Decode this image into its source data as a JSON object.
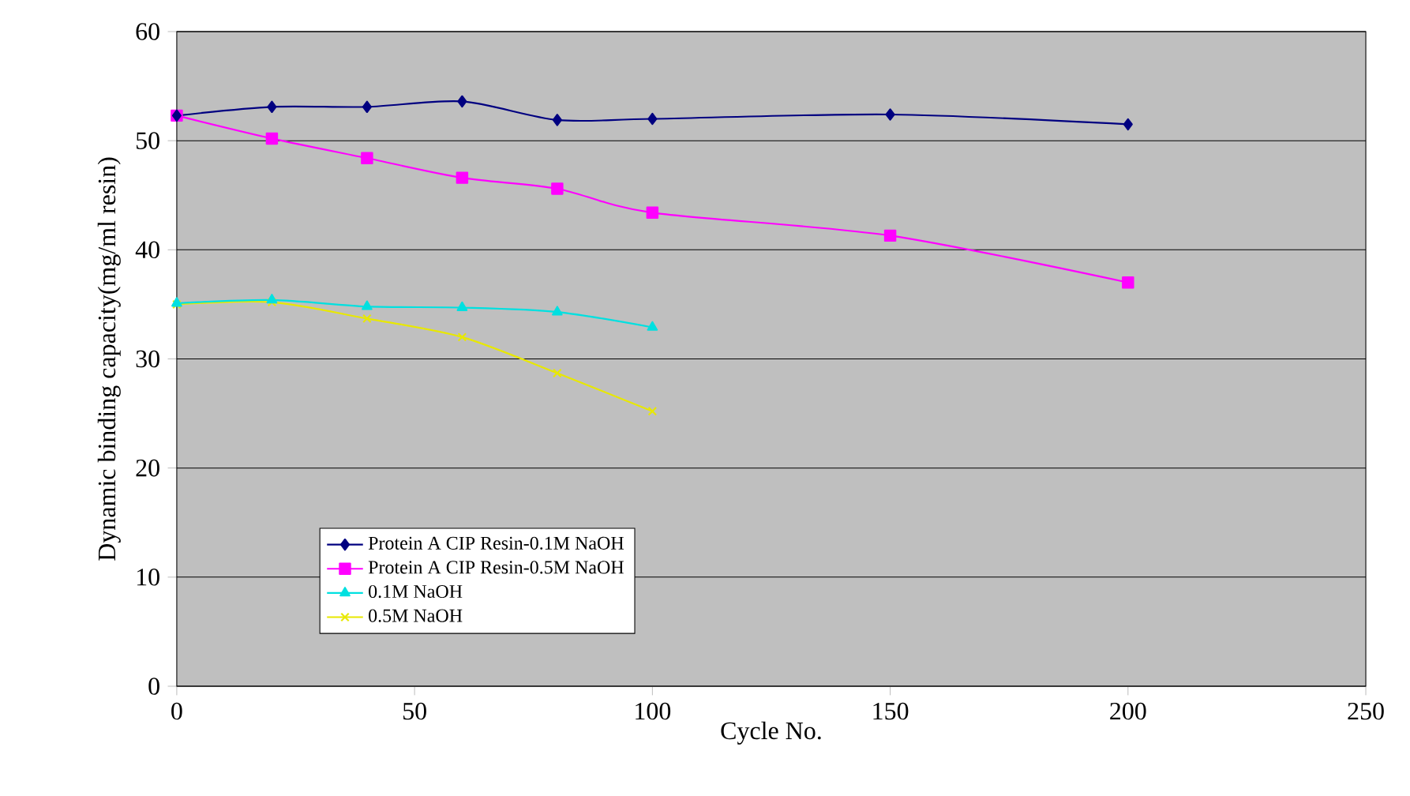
{
  "chart_data": {
    "type": "line",
    "xlabel": "Cycle No.",
    "ylabel": "Dynamic binding capacity(mg/ml resin)",
    "xlim": [
      0,
      250
    ],
    "xticks": [
      0,
      50,
      100,
      150,
      200,
      250
    ],
    "ylim": [
      0,
      60
    ],
    "yticks": [
      0,
      10,
      20,
      30,
      40,
      50,
      60
    ],
    "grid": "y",
    "legend": "bottom left",
    "line_style": "solid",
    "series": [
      {
        "name": "Protein A CIP Resin-0.1M NaOH",
        "color": "#000080",
        "marker": "diamond",
        "x": [
          0,
          20,
          40,
          60,
          80,
          100,
          150,
          200
        ],
        "values": [
          52.3,
          53.1,
          53.1,
          53.6,
          51.9,
          52.0,
          52.4,
          51.5
        ]
      },
      {
        "name": "Protein A CIP Resin-0.5M NaOH",
        "color": "#ff00ff",
        "marker": "square",
        "x": [
          0,
          20,
          40,
          60,
          80,
          100,
          150,
          200
        ],
        "values": [
          52.3,
          50.2,
          48.4,
          46.6,
          45.6,
          43.4,
          41.3,
          37.0
        ]
      },
      {
        "name": "0.1M NaOH",
        "color": "#00e0e0",
        "marker": "triangle",
        "x": [
          0,
          20,
          40,
          60,
          80,
          100
        ],
        "values": [
          35.1,
          35.4,
          34.8,
          34.7,
          34.3,
          32.9
        ]
      },
      {
        "name": "0.5M NaOH",
        "color": "#e8e800",
        "marker": "cross",
        "x": [
          0,
          20,
          40,
          60,
          80,
          100
        ],
        "values": [
          35.0,
          35.2,
          33.7,
          32.0,
          28.7,
          25.2
        ]
      }
    ]
  }
}
